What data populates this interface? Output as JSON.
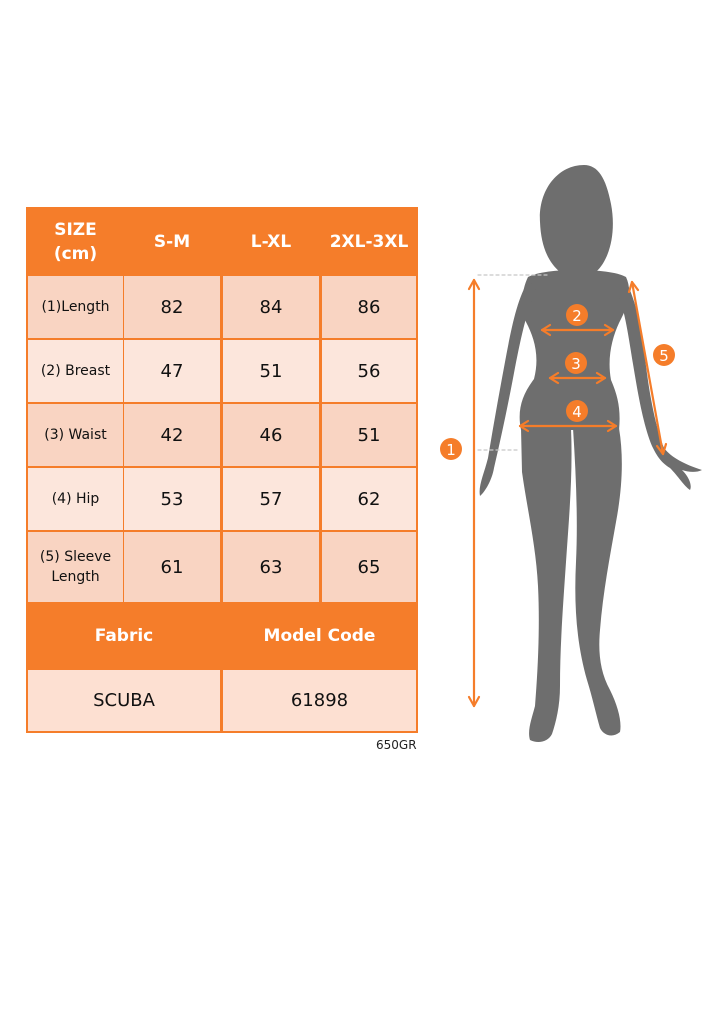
{
  "table": {
    "header": {
      "size_label": "SIZE",
      "unit_label": "(cm)",
      "sizes": [
        "S-M",
        "L-XL",
        "2XL-3XL"
      ]
    },
    "rows": [
      {
        "label": "(1)Length",
        "values": [
          "82",
          "84",
          "86"
        ]
      },
      {
        "label": "(2) Breast",
        "values": [
          "47",
          "51",
          "56"
        ]
      },
      {
        "label": "(3) Waist",
        "values": [
          "42",
          "46",
          "51"
        ]
      },
      {
        "label": "(4) Hip",
        "values": [
          "53",
          "57",
          "62"
        ]
      },
      {
        "label": "(5) Sleeve Length",
        "values": [
          "61",
          "63",
          "65"
        ]
      }
    ],
    "footer": {
      "fabric_label": "Fabric",
      "model_code_label": "Model Code",
      "fabric_value": "SCUBA",
      "model_code_value": "61898"
    }
  },
  "product_code": "650GR",
  "figure": {
    "markers": [
      "1",
      "2",
      "3",
      "4",
      "5"
    ]
  },
  "colors": {
    "accent": "#f57d2a",
    "cell_light": "#fce6dc",
    "cell_medium": "#f9d4c2",
    "silhouette": "#6e6e6e"
  }
}
